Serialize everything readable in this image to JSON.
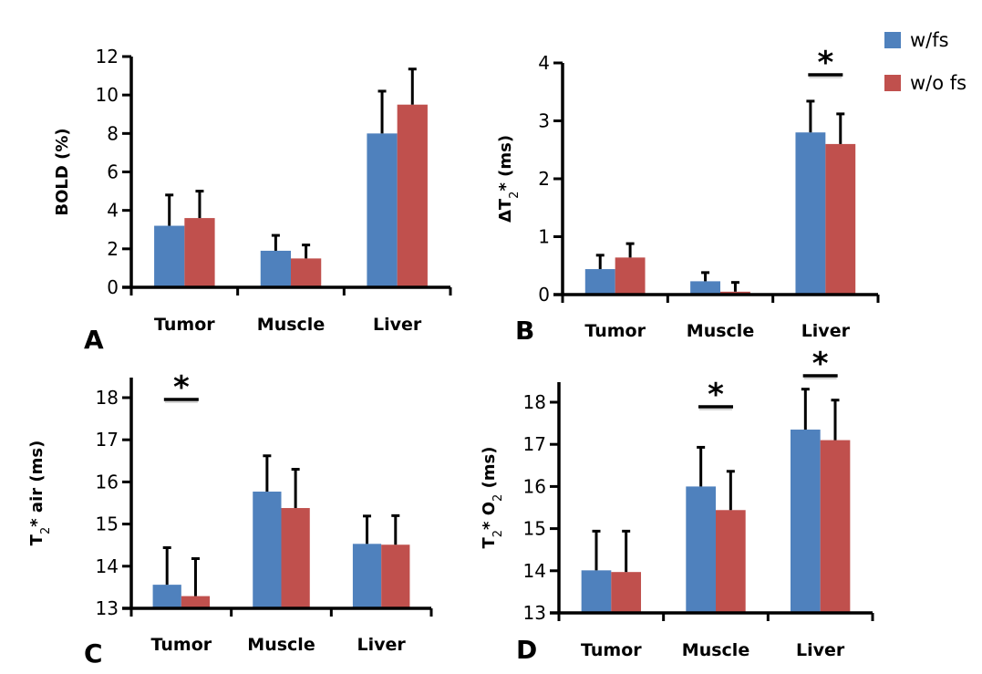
{
  "legend": {
    "placement": "top-right",
    "items": [
      {
        "label": "w/fs",
        "color": "#4F81BD"
      },
      {
        "label": "w/o fs",
        "color": "#C0504D"
      }
    ]
  },
  "chart_data": [
    {
      "type": "bar",
      "panel": "A",
      "title": "",
      "xlabel": "",
      "ylabel": "BOLD (%)",
      "ylabel_parts": [
        {
          "t": "BOLD (%)"
        }
      ],
      "categories": [
        "Tumor",
        "Muscle",
        "Liver"
      ],
      "ylim": [
        0,
        12
      ],
      "yticks": [
        0,
        2,
        4,
        6,
        8,
        10,
        12
      ],
      "grid": false,
      "series": [
        {
          "name": "w/fs",
          "values": [
            3.2,
            1.9,
            8.0
          ],
          "error": [
            1.6,
            0.8,
            2.2
          ]
        },
        {
          "name": "w/o fs",
          "values": [
            3.6,
            1.5,
            9.5
          ],
          "error": [
            1.4,
            0.7,
            1.85
          ]
        }
      ],
      "significance": []
    },
    {
      "type": "bar",
      "panel": "B",
      "title": "",
      "xlabel": "",
      "ylabel": "ΔT2* (ms)",
      "ylabel_parts": [
        {
          "t": "ΔT"
        },
        {
          "t": "2",
          "sub": true
        },
        {
          "t": "* (ms)"
        }
      ],
      "categories": [
        "Tumor",
        "Muscle",
        "Liver"
      ],
      "ylim": [
        0,
        4
      ],
      "yticks": [
        0,
        1,
        2,
        3,
        4
      ],
      "grid": false,
      "series": [
        {
          "name": "w/fs",
          "values": [
            0.44,
            0.23,
            2.8
          ],
          "error": [
            0.24,
            0.15,
            0.54
          ]
        },
        {
          "name": "w/o fs",
          "values": [
            0.64,
            0.05,
            2.6
          ],
          "error": [
            0.24,
            0.16,
            0.52
          ]
        }
      ],
      "significance": [
        {
          "category": "Liver",
          "label": "*"
        }
      ]
    },
    {
      "type": "bar",
      "panel": "C",
      "title": "",
      "xlabel": "",
      "ylabel": "T2* air (ms)",
      "ylabel_parts": [
        {
          "t": "T"
        },
        {
          "t": "2",
          "sub": true
        },
        {
          "t": "* air (ms)"
        }
      ],
      "categories": [
        "Tumor",
        "Muscle",
        "Liver"
      ],
      "ylim": [
        13,
        18.5
      ],
      "yticks": [
        13,
        14,
        15,
        16,
        17,
        18
      ],
      "grid": false,
      "series": [
        {
          "name": "w/fs",
          "values": [
            13.56,
            15.77,
            14.53
          ],
          "error": [
            0.88,
            0.85,
            0.66
          ]
        },
        {
          "name": "w/o fs",
          "values": [
            13.29,
            15.38,
            14.51
          ],
          "error": [
            0.89,
            0.92,
            0.69
          ]
        }
      ],
      "significance": [
        {
          "category": "Tumor",
          "label": "*"
        }
      ]
    },
    {
      "type": "bar",
      "panel": "D",
      "title": "",
      "xlabel": "",
      "ylabel": "T2* O2 (ms)",
      "ylabel_parts": [
        {
          "t": "T"
        },
        {
          "t": "2",
          "sub": true
        },
        {
          "t": "* O"
        },
        {
          "t": "2",
          "sub": true
        },
        {
          "t": " (ms)"
        }
      ],
      "categories": [
        "Tumor",
        "Muscle",
        "Liver"
      ],
      "ylim": [
        13,
        18.5
      ],
      "yticks": [
        13,
        14,
        15,
        16,
        17,
        18
      ],
      "grid": false,
      "series": [
        {
          "name": "w/fs",
          "values": [
            14.01,
            16.0,
            17.35
          ],
          "error": [
            0.93,
            0.93,
            0.96
          ]
        },
        {
          "name": "w/o fs",
          "values": [
            13.97,
            15.44,
            17.1
          ],
          "error": [
            0.97,
            0.92,
            0.95
          ]
        }
      ],
      "significance": [
        {
          "category": "Muscle",
          "label": "*"
        },
        {
          "category": "Liver",
          "label": "*"
        }
      ]
    }
  ]
}
